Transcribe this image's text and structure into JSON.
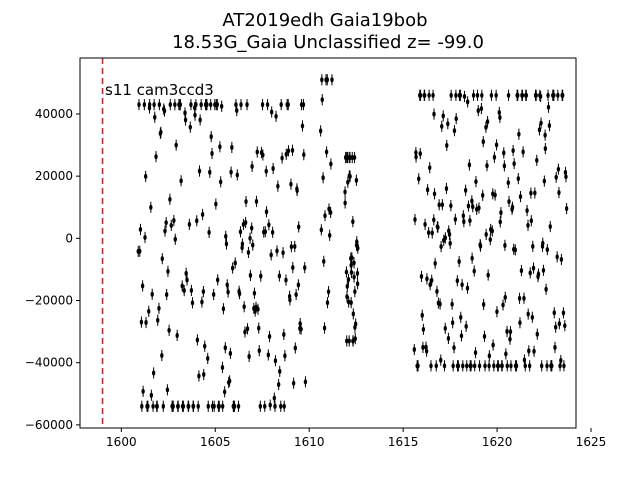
{
  "chart_data": {
    "type": "scatter",
    "title": "AT2019edh  Gaia19bob",
    "subtitle": "18.53G_Gaia Unclassified z= -99.0",
    "xlabel": "",
    "ylabel": "",
    "xlim": [
      1597.8,
      1624.2
    ],
    "ylim": [
      -61000,
      58000
    ],
    "xticks": [
      1600,
      1605,
      1610,
      1615,
      1620,
      1625
    ],
    "yticks": [
      -60000,
      -40000,
      -20000,
      0,
      20000,
      40000
    ],
    "ytick_labels": [
      "−60000",
      "−40000",
      "−20000",
      "0",
      "20000",
      "40000"
    ],
    "grid": false,
    "legend": "none",
    "annotation": "s11 cam3ccd3",
    "vline": {
      "x": 1599.0,
      "color": "#d62728",
      "style": "dashed"
    },
    "marker_color": "#000000",
    "error_bar": 1800,
    "segments": [
      {
        "x_start": 1600.9,
        "x_end": 1609.8,
        "n": 230,
        "y_min": -54000,
        "y_max": 43000
      },
      {
        "x_start": 1610.6,
        "x_end": 1611.2,
        "n": 18,
        "y_min": -42000,
        "y_max": 51000
      },
      {
        "x_start": 1611.9,
        "x_end": 1612.6,
        "n": 42,
        "y_min": -33000,
        "y_max": 26000
      },
      {
        "x_start": 1615.6,
        "x_end": 1623.7,
        "n": 240,
        "y_min": -41000,
        "y_max": 46000
      }
    ]
  }
}
